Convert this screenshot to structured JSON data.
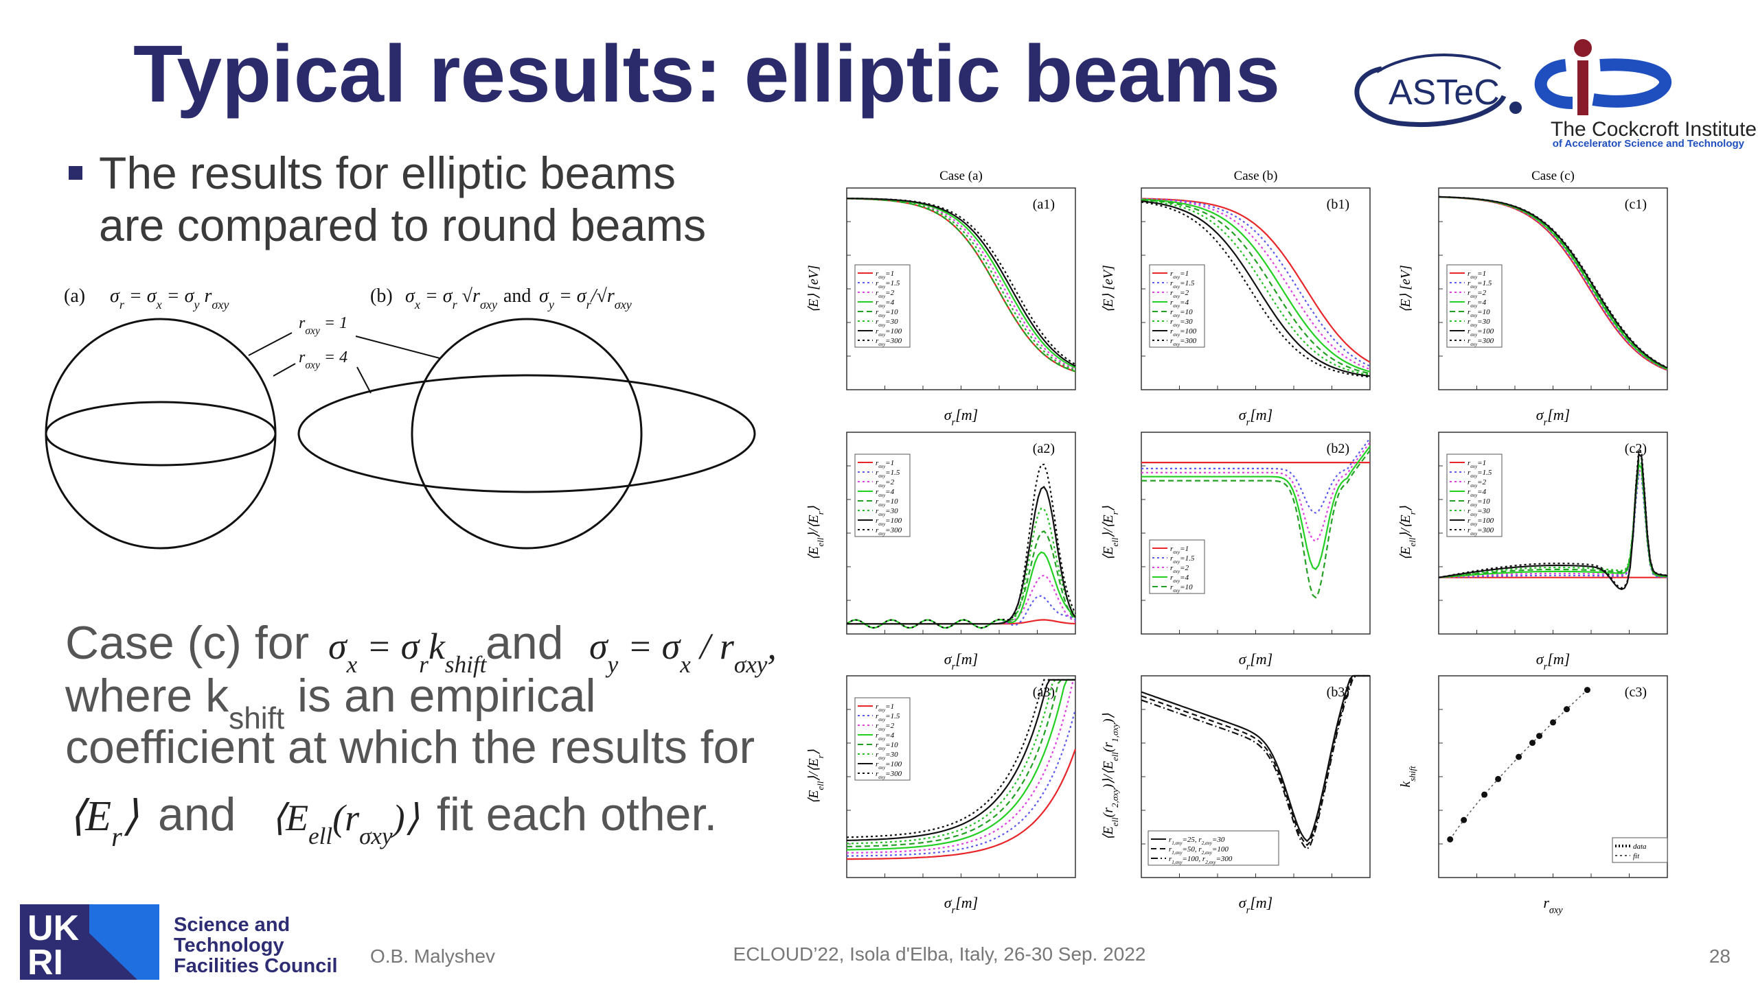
{
  "header": {
    "title": "Typical results: elliptic beams",
    "logo_astec": "ASTeC",
    "logo_cockcroft": "The Cockcroft Institute",
    "logo_cockcroft_sub": "of Accelerator Science and Technology"
  },
  "bullet": [
    "The results for elliptic beams",
    "are compared to round beams"
  ],
  "diagram": {
    "label_a": "(a)",
    "formula_a": [
      "σ",
      "r",
      " = σ",
      "x",
      " = σ",
      "y",
      " r",
      "σxy"
    ],
    "label_b": "(b)",
    "formula_b1": [
      "σ",
      "x",
      " = σ",
      "r",
      " √r",
      "σxy"
    ],
    "and": "and",
    "formula_b2": [
      "σ",
      "y",
      " = σ",
      "r",
      "/√r",
      "σxy"
    ],
    "ratio_1": [
      "r",
      "σxy",
      " = 1"
    ],
    "ratio_4": [
      "r",
      "σxy",
      " = 4"
    ]
  },
  "case_text": {
    "line1_start": "Case (c) for",
    "formula_1": [
      "σ",
      "x",
      " = σ",
      "r",
      "k",
      "shift"
    ],
    "line1_and": "and",
    "formula_2": [
      "σ",
      "y",
      " = σ",
      "x",
      " / r",
      "σxy",
      ","
    ],
    "line2": [
      "where k",
      "shift",
      " is an empirical"
    ],
    "line3": "coefficient at which the results for",
    "formula_3": [
      "⟨E",
      "r",
      "⟩"
    ],
    "line4_and": "and",
    "formula_4": [
      "⟨E",
      "ell",
      "(r",
      "σxy",
      ")⟩"
    ],
    "line4_end": "fit each other."
  },
  "plots": [
    {
      "title": "Case (a)",
      "label": "(a1)",
      "ylabel": [
        "⟨E⟩ [eV]"
      ],
      "xlabel": [
        "σ",
        "r",
        "[m]"
      ],
      "legend": [
        [
          "r",
          "σxy",
          "=1"
        ],
        [
          "r",
          "σxy",
          "=1.5"
        ],
        [
          "r",
          "σxy",
          "=2"
        ],
        [
          "r",
          "σxy",
          "=4"
        ],
        [
          "r",
          "σxy",
          "=10"
        ],
        [
          "r",
          "σxy",
          "=30"
        ],
        [
          "r",
          "σxy",
          "=100"
        ],
        [
          "r",
          "σxy",
          "=300"
        ]
      ]
    },
    {
      "title": "Case (b)",
      "label": "(b1)",
      "ylabel": [
        "⟨E⟩ [eV]"
      ],
      "xlabel": [
        "σ",
        "r",
        "[m]"
      ],
      "legend": [
        [
          "r",
          "σxy",
          "=1"
        ],
        [
          "r",
          "σxy",
          "=1.5"
        ],
        [
          "r",
          "σxy",
          "=2"
        ],
        [
          "r",
          "σxy",
          "=4"
        ],
        [
          "r",
          "σxy",
          "=10"
        ],
        [
          "r",
          "σxy",
          "=30"
        ],
        [
          "r",
          "σxy",
          "=100"
        ],
        [
          "r",
          "σxy",
          "=300"
        ]
      ]
    },
    {
      "title": "Case (c)",
      "label": "(c1)",
      "ylabel": [
        "⟨E⟩ [eV]"
      ],
      "xlabel": [
        "σ",
        "r",
        "[m]"
      ],
      "legend": [
        [
          "r",
          "σxy",
          "=1"
        ],
        [
          "r",
          "σxy",
          "=1.5"
        ],
        [
          "r",
          "σxy",
          "=2"
        ],
        [
          "r",
          "σxy",
          "=4"
        ],
        [
          "r",
          "σxy",
          "=10"
        ],
        [
          "r",
          "σxy",
          "=30"
        ],
        [
          "r",
          "σxy",
          "=100"
        ],
        [
          "r",
          "σxy",
          "=300"
        ]
      ]
    },
    {
      "label": "(a2)",
      "ylabel": [
        "⟨E",
        "ell",
        "⟩/⟨E",
        "r",
        "⟩"
      ],
      "xlabel": [
        "σ",
        "r",
        "[m]"
      ],
      "legend": [
        [
          "r",
          "σxy",
          "=1"
        ],
        [
          "r",
          "σxy",
          "=1.5"
        ],
        [
          "r",
          "σxy",
          "=2"
        ],
        [
          "r",
          "σxy",
          "=4"
        ],
        [
          "r",
          "σxy",
          "=10"
        ],
        [
          "r",
          "σxy",
          "=30"
        ],
        [
          "r",
          "σxy",
          "=100"
        ],
        [
          "r",
          "σxy",
          "=300"
        ]
      ]
    },
    {
      "label": "(b2)",
      "ylabel": [
        "⟨E",
        "ell",
        "⟩/⟨E",
        "r",
        "⟩"
      ],
      "xlabel": [
        "σ",
        "r",
        "[m]"
      ],
      "legend": [
        [
          "r",
          "σxy",
          "=1"
        ],
        [
          "r",
          "σxy",
          "=1.5"
        ],
        [
          "r",
          "σxy",
          "=2"
        ],
        [
          "r",
          "σxy",
          "=4"
        ],
        [
          "r",
          "σxy",
          "=10"
        ]
      ]
    },
    {
      "label": "(c2)",
      "ylabel": [
        "⟨E",
        "ell",
        "⟩/⟨E",
        "r",
        "⟩"
      ],
      "xlabel": [
        "σ",
        "r",
        "[m]"
      ],
      "legend": [
        [
          "r",
          "σxy",
          "=1"
        ],
        [
          "r",
          "σxy",
          "=1.5"
        ],
        [
          "r",
          "σxy",
          "=2"
        ],
        [
          "r",
          "σxy",
          "=4"
        ],
        [
          "r",
          "σxy",
          "=10"
        ],
        [
          "r",
          "σxy",
          "=30"
        ],
        [
          "r",
          "σxy",
          "=100"
        ],
        [
          "r",
          "σxy",
          "=300"
        ]
      ]
    },
    {
      "label": "(a3)",
      "ylabel": [
        "⟨E",
        "ell",
        "⟩/⟨E",
        "r",
        "⟩"
      ],
      "xlabel": [
        "σ",
        "r",
        "[m]"
      ],
      "legend": [
        [
          "r",
          "σxy",
          "=1"
        ],
        [
          "r",
          "σxy",
          "=1.5"
        ],
        [
          "r",
          "σxy",
          "=2"
        ],
        [
          "r",
          "σxy",
          "=4"
        ],
        [
          "r",
          "σxy",
          "=10"
        ],
        [
          "r",
          "σxy",
          "=30"
        ],
        [
          "r",
          "σxy",
          "=100"
        ],
        [
          "r",
          "σxy",
          "=300"
        ]
      ]
    },
    {
      "label": "(b3)",
      "ylabel": [
        "⟨E",
        "ell",
        "(r",
        "2,σxy",
        ")⟩/⟨E",
        "ell",
        "(r",
        "1,σxy",
        ")⟩"
      ],
      "xlabel": [
        "σ",
        "r",
        "[m]"
      ],
      "legend": [
        [
          "r",
          "1,σxy",
          "=25, r",
          "2,σxy",
          "=30"
        ],
        [
          "r",
          "1,σxy",
          "=50, r",
          "2,σxy",
          "=100"
        ],
        [
          "r",
          "1,σxy",
          "=100, r",
          "2,σxy",
          "=300"
        ]
      ]
    },
    {
      "label": "(c3)",
      "ylabel": [
        "k",
        "shift"
      ],
      "xlabel": [
        "r",
        "σxy"
      ],
      "legend": [
        [
          "data"
        ],
        [
          "fit"
        ]
      ]
    }
  ],
  "footer": {
    "org": [
      "Science and",
      "Technology",
      "Facilities Council"
    ],
    "author": "O.B. Malyshev",
    "event": "ECLOUD’22, Isola d'Elba, Italy, 26-30 Sep. 2022",
    "page": "28"
  }
}
